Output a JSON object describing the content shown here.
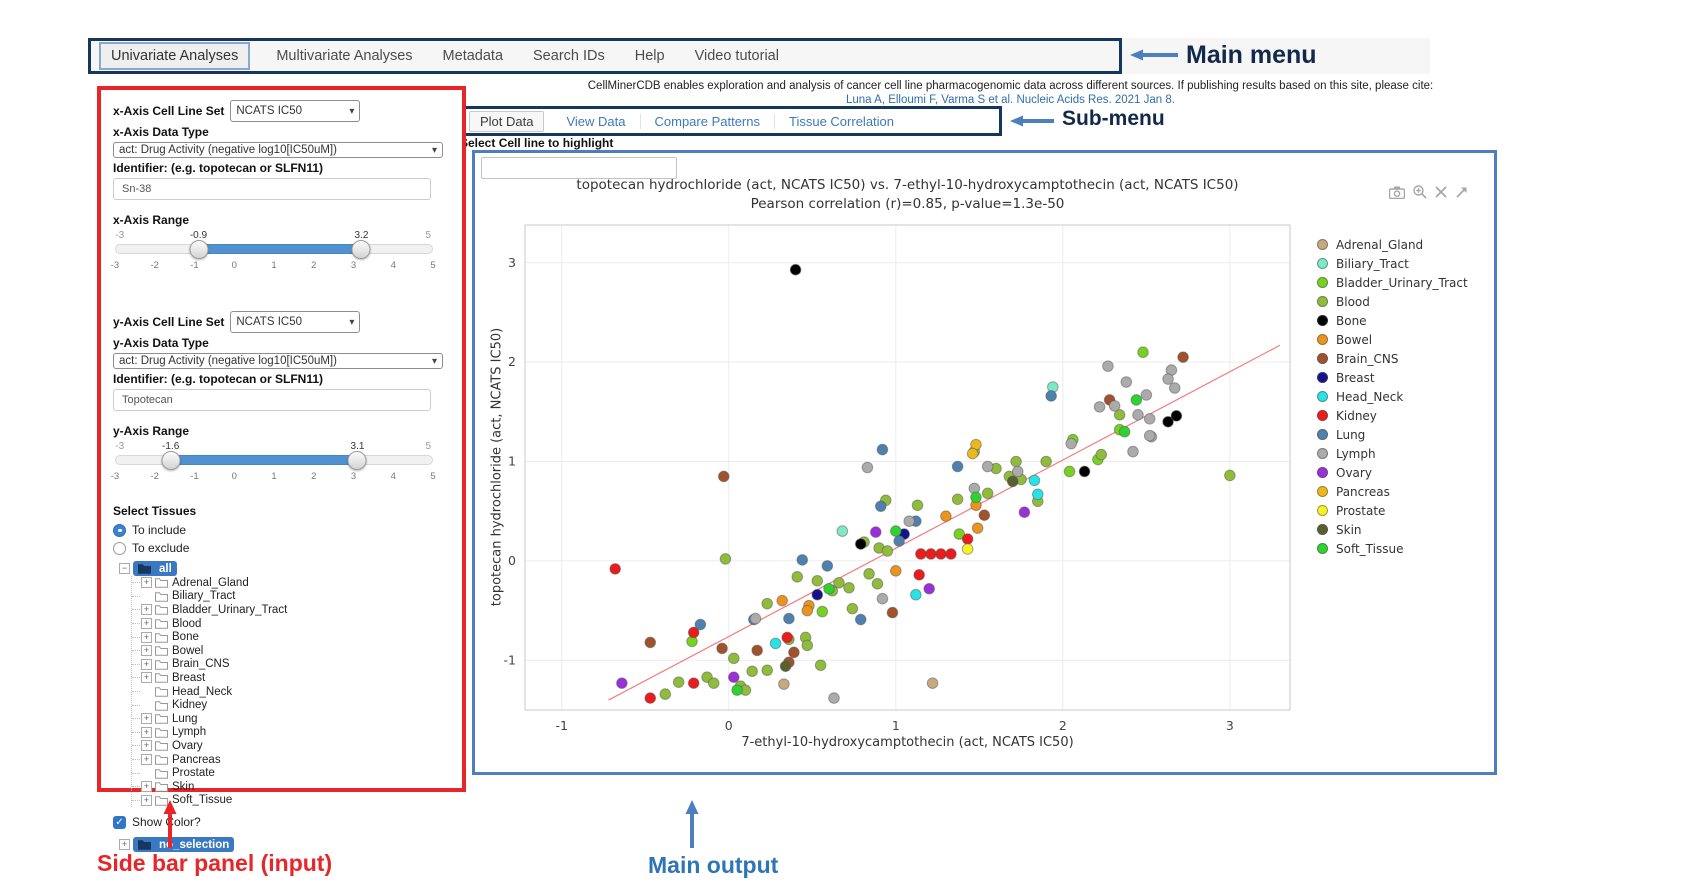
{
  "annotations": {
    "main_menu": "Main menu",
    "sub_menu": "Sub-menu",
    "sidebar_panel": "Side bar panel (input)",
    "main_output": "Main output",
    "arrow_color": "#4d7ebf",
    "sidebar_color": "#e8262a",
    "main_output_color": "#2e75b6"
  },
  "main_menu": {
    "items": [
      {
        "label": "Univariate Analyses",
        "active": true
      },
      {
        "label": "Multivariate Analyses",
        "active": false
      },
      {
        "label": "Metadata",
        "active": false
      },
      {
        "label": "Search IDs",
        "active": false
      },
      {
        "label": "Help",
        "active": false
      },
      {
        "label": "Video tutorial",
        "active": false
      }
    ]
  },
  "citation": {
    "line1": "CellMinerCDB enables exploration and analysis of cancer cell line pharmacogenomic data across different sources. If publishing results based on this site, please cite:",
    "link": "Luna A, Elloumi F, Varma S et al. Nucleic Acids Res. 2021 Jan 8."
  },
  "sub_menu": {
    "tabs": [
      {
        "label": "Plot Data",
        "active": true
      },
      {
        "label": "View Data",
        "active": false
      },
      {
        "label": "Compare Patterns",
        "active": false
      },
      {
        "label": "Tissue Correlation",
        "active": false
      }
    ]
  },
  "highlight": {
    "label": "Select Cell line to highlight",
    "value": ""
  },
  "sidebar": {
    "x_axis": {
      "cell_line_set_label": "x-Axis Cell Line Set",
      "cell_line_set_value": "NCATS IC50",
      "data_type_label": "x-Axis Data Type",
      "data_type_value": "act: Drug Activity (negative log10[IC50uM])",
      "identifier_label": "Identifier: (e.g. topotecan or SLFN11)",
      "identifier_value": "Sn-38",
      "range_label": "x-Axis Range",
      "range": {
        "min": -3,
        "max": 5,
        "from": -0.9,
        "to": 3.2,
        "ticks": [
          -3,
          -2,
          -1,
          0,
          1,
          2,
          3,
          4,
          5
        ]
      }
    },
    "y_axis": {
      "cell_line_set_label": "y-Axis Cell Line Set",
      "cell_line_set_value": "NCATS IC50",
      "data_type_label": "y-Axis Data Type",
      "data_type_value": "act: Drug Activity (negative log10[IC50uM])",
      "identifier_label": "Identifier: (e.g. topotecan or SLFN11)",
      "identifier_value": "Topotecan",
      "range_label": "y-Axis Range",
      "range": {
        "min": -3,
        "max": 5,
        "from": -1.6,
        "to": 3.1,
        "ticks": [
          -3,
          -2,
          -1,
          0,
          1,
          2,
          3,
          4,
          5
        ]
      }
    },
    "tissues": {
      "label": "Select Tissues",
      "options": [
        {
          "label": "To include",
          "selected": true
        },
        {
          "label": "To exclude",
          "selected": false
        }
      ],
      "root_label": "all",
      "items": [
        {
          "label": "Adrenal_Gland",
          "expandable": true
        },
        {
          "label": "Biliary_Tract",
          "expandable": false
        },
        {
          "label": "Bladder_Urinary_Tract",
          "expandable": true
        },
        {
          "label": "Blood",
          "expandable": true
        },
        {
          "label": "Bone",
          "expandable": true
        },
        {
          "label": "Bowel",
          "expandable": true
        },
        {
          "label": "Brain_CNS",
          "expandable": true
        },
        {
          "label": "Breast",
          "expandable": true
        },
        {
          "label": "Head_Neck",
          "expandable": false
        },
        {
          "label": "Kidney",
          "expandable": false
        },
        {
          "label": "Lung",
          "expandable": true
        },
        {
          "label": "Lymph",
          "expandable": true
        },
        {
          "label": "Ovary",
          "expandable": true
        },
        {
          "label": "Pancreas",
          "expandable": true
        },
        {
          "label": "Prostate",
          "expandable": false
        },
        {
          "label": "Skin",
          "expandable": true
        },
        {
          "label": "Soft_Tissue",
          "expandable": true
        }
      ],
      "show_color_label": "Show Color?",
      "show_color_checked": true,
      "no_selection_label": "no_selection"
    }
  },
  "plot": {
    "modebar_icons": [
      "camera-icon",
      "zoom-in-icon",
      "close-icon",
      "arrow-icon"
    ]
  },
  "chart_data": {
    "type": "scatter",
    "title": "topotecan hydrochloride (act, NCATS IC50) vs. 7-ethyl-10-hydroxycamptothecin (act, NCATS IC50)",
    "subtitle": "Pearson correlation (r)=0.85, p-value=1.3e-50",
    "xlabel": "7-ethyl-10-hydroxycamptothecin (act, NCATS IC50)",
    "ylabel": "topotecan hydrochloride (act, NCATS IC50)",
    "pearson_r": 0.85,
    "p_value": "1.3e-50",
    "xrange": [
      -1.22,
      3.36
    ],
    "yrange": [
      -1.5,
      3.38
    ],
    "xticks": [
      -1,
      0,
      1,
      2,
      3
    ],
    "yticks": [
      -1,
      0,
      1,
      2,
      3
    ],
    "grid": true,
    "legend_position": "right",
    "regression": {
      "x": [
        -0.72,
        3.3
      ],
      "y": [
        -1.4,
        2.17
      ],
      "color": "#f47c7c"
    },
    "series": [
      {
        "name": "Adrenal_Gland",
        "color": "#c8a97e",
        "points": [
          [
            0.33,
            -1.24
          ],
          [
            1.22,
            -1.23
          ]
        ]
      },
      {
        "name": "Biliary_Tract",
        "color": "#7fe8c7",
        "points": [
          [
            1.94,
            1.75
          ],
          [
            0.68,
            0.3
          ]
        ]
      },
      {
        "name": "Bladder_Urinary_Tract",
        "color": "#77d121",
        "points": [
          [
            2.48,
            2.1
          ],
          [
            2.34,
            1.32
          ],
          [
            2.06,
            1.22
          ],
          [
            2.04,
            0.9
          ],
          [
            2.21,
            1.02
          ],
          [
            1.38,
            0.27
          ],
          [
            0.56,
            -0.51
          ],
          [
            -0.22,
            -0.81
          ]
        ]
      },
      {
        "name": "Blood",
        "color": "#8fbc3b",
        "points": [
          [
            3.0,
            0.86
          ],
          [
            1.47,
            1.1
          ],
          [
            0.94,
            0.61
          ],
          [
            0.81,
            0.19
          ],
          [
            0.9,
            0.13
          ],
          [
            0.95,
            0.1
          ],
          [
            0.84,
            -0.13
          ],
          [
            0.89,
            -0.23
          ],
          [
            0.74,
            -0.48
          ],
          [
            0.41,
            -0.16
          ],
          [
            0.53,
            -0.2
          ],
          [
            0.62,
            -0.3
          ],
          [
            0.66,
            -0.22
          ],
          [
            0.72,
            -0.27
          ],
          [
            0.23,
            -0.43
          ],
          [
            0.36,
            -0.79
          ],
          [
            0.46,
            -0.77
          ],
          [
            0.47,
            -0.85
          ],
          [
            0.03,
            -0.98
          ],
          [
            0.14,
            -1.11
          ],
          [
            0.23,
            -1.1
          ],
          [
            -0.13,
            -1.17
          ],
          [
            -0.09,
            -1.23
          ],
          [
            0.07,
            -1.26
          ],
          [
            -0.38,
            -1.34
          ],
          [
            -0.02,
            0.02
          ],
          [
            1.6,
            0.93
          ],
          [
            1.75,
            0.82
          ],
          [
            1.72,
            1.0
          ],
          [
            2.23,
            1.07
          ],
          [
            1.37,
            0.62
          ],
          [
            1.13,
            0.56
          ],
          [
            2.34,
            1.47
          ],
          [
            1.55,
            0.68
          ],
          [
            1.68,
            0.85
          ],
          [
            1.9,
            1.0
          ],
          [
            1.85,
            0.6
          ],
          [
            0.1,
            -1.3
          ],
          [
            -0.3,
            -1.22
          ],
          [
            0.55,
            -1.05
          ]
        ]
      },
      {
        "name": "Bone",
        "color": "#000000",
        "points": [
          [
            0.4,
            2.93
          ],
          [
            2.63,
            1.4
          ],
          [
            2.68,
            1.46
          ],
          [
            2.13,
            0.9
          ],
          [
            0.79,
            0.17
          ]
        ]
      },
      {
        "name": "Bowel",
        "color": "#e8941f",
        "points": [
          [
            1.48,
            0.56
          ],
          [
            1.3,
            0.45
          ],
          [
            1.49,
            0.33
          ],
          [
            1.0,
            -0.1
          ],
          [
            0.32,
            -0.4
          ],
          [
            0.48,
            -0.45
          ],
          [
            0.47,
            -0.5
          ]
        ]
      },
      {
        "name": "Brain_CNS",
        "color": "#a0522d",
        "points": [
          [
            2.72,
            2.05
          ],
          [
            2.28,
            1.62
          ],
          [
            -0.03,
            0.85
          ],
          [
            1.53,
            0.46
          ],
          [
            0.98,
            -0.52
          ],
          [
            -0.47,
            -0.82
          ],
          [
            -0.04,
            -0.88
          ],
          [
            0.17,
            -0.9
          ],
          [
            0.39,
            -0.92
          ],
          [
            0.36,
            -1.02
          ]
        ]
      },
      {
        "name": "Breast",
        "color": "#13138b",
        "points": [
          [
            1.05,
            0.27
          ],
          [
            0.53,
            -0.34
          ]
        ]
      },
      {
        "name": "Head_Neck",
        "color": "#29e2e6",
        "points": [
          [
            1.83,
            0.81
          ],
          [
            1.85,
            0.67
          ],
          [
            1.12,
            -0.34
          ],
          [
            0.28,
            -0.83
          ]
        ]
      },
      {
        "name": "Kidney",
        "color": "#ea1c1c",
        "points": [
          [
            -0.68,
            -0.08
          ],
          [
            1.15,
            0.07
          ],
          [
            1.21,
            0.07
          ],
          [
            1.27,
            0.07
          ],
          [
            1.33,
            0.07
          ],
          [
            1.43,
            0.22
          ],
          [
            1.14,
            -0.14
          ],
          [
            -0.21,
            -0.72
          ],
          [
            0.35,
            -0.77
          ],
          [
            -0.21,
            -1.23
          ],
          [
            -0.47,
            -1.38
          ]
        ]
      },
      {
        "name": "Lung",
        "color": "#4e81ad",
        "points": [
          [
            1.93,
            1.66
          ],
          [
            0.92,
            1.12
          ],
          [
            1.37,
            0.95
          ],
          [
            0.91,
            0.55
          ],
          [
            1.02,
            0.2
          ],
          [
            0.44,
            0.01
          ],
          [
            0.59,
            -0.05
          ],
          [
            0.36,
            -0.58
          ],
          [
            0.15,
            -0.59
          ],
          [
            -0.17,
            -0.64
          ],
          [
            0.79,
            -0.59
          ],
          [
            1.12,
            0.4
          ]
        ]
      },
      {
        "name": "Lymph",
        "color": "#ababab",
        "points": [
          [
            2.27,
            1.96
          ],
          [
            2.65,
            1.92
          ],
          [
            2.38,
            1.8
          ],
          [
            2.67,
            1.74
          ],
          [
            2.63,
            1.83
          ],
          [
            2.22,
            1.55
          ],
          [
            2.31,
            1.56
          ],
          [
            2.5,
            1.67
          ],
          [
            2.45,
            1.47
          ],
          [
            2.52,
            1.43
          ],
          [
            2.53,
            1.25
          ],
          [
            2.42,
            1.1
          ],
          [
            2.52,
            1.26
          ],
          [
            0.83,
            0.94
          ],
          [
            1.08,
            0.4
          ],
          [
            0.92,
            -0.38
          ],
          [
            0.16,
            -0.58
          ],
          [
            0.63,
            -1.38
          ],
          [
            1.73,
            0.9
          ],
          [
            1.55,
            0.95
          ],
          [
            1.47,
            0.73
          ],
          [
            2.05,
            1.18
          ]
        ]
      },
      {
        "name": "Ovary",
        "color": "#9a30d8",
        "points": [
          [
            1.77,
            0.49
          ],
          [
            1.2,
            -0.28
          ],
          [
            0.88,
            0.29
          ],
          [
            0.03,
            -1.17
          ],
          [
            -0.64,
            -1.23
          ]
        ]
      },
      {
        "name": "Pancreas",
        "color": "#edb81e",
        "points": [
          [
            1.48,
            1.17
          ],
          [
            1.46,
            1.08
          ]
        ]
      },
      {
        "name": "Prostate",
        "color": "#f5f327",
        "points": [
          [
            1.43,
            0.12
          ]
        ]
      },
      {
        "name": "Skin",
        "color": "#59602f",
        "points": [
          [
            0.34,
            -1.06
          ],
          [
            1.7,
            0.8
          ]
        ]
      },
      {
        "name": "Soft_Tissue",
        "color": "#2fd32f",
        "points": [
          [
            2.44,
            1.62
          ],
          [
            2.37,
            1.3
          ],
          [
            1.48,
            0.64
          ],
          [
            1.0,
            0.3
          ],
          [
            0.6,
            -0.28
          ],
          [
            0.05,
            -1.3
          ]
        ]
      }
    ]
  }
}
